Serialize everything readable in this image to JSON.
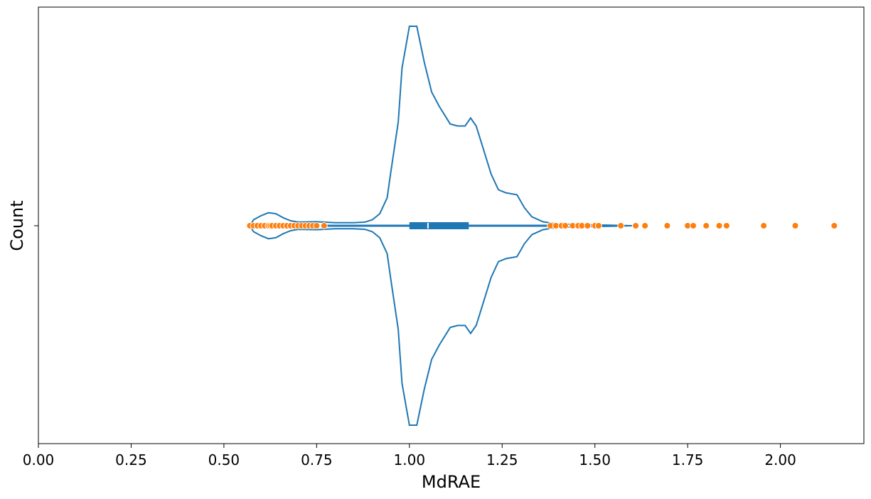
{
  "chart_data": {
    "type": "violin",
    "xlabel": "MdRAE",
    "ylabel": "Count",
    "xlim": [
      0.0,
      2.225
    ],
    "x_ticks": [
      "0.00",
      "0.25",
      "0.50",
      "0.75",
      "1.00",
      "1.25",
      "1.50",
      "1.75",
      "2.00"
    ],
    "y_ticks": [
      ""
    ],
    "grid": false,
    "colors": {
      "violin": "#1f77b4",
      "outliers": "#ff7f0e",
      "median": "#ffffff"
    },
    "box": {
      "q1": 1.0,
      "median": 1.05,
      "q3": 1.16,
      "whisker_low": 0.77,
      "whisker_high": 1.38
    },
    "density_profile": [
      [
        0.57,
        0.0
      ],
      [
        0.58,
        0.03
      ],
      [
        0.6,
        0.05
      ],
      [
        0.62,
        0.065
      ],
      [
        0.64,
        0.06
      ],
      [
        0.66,
        0.04
      ],
      [
        0.68,
        0.025
      ],
      [
        0.7,
        0.018
      ],
      [
        0.75,
        0.02
      ],
      [
        0.8,
        0.015
      ],
      [
        0.85,
        0.015
      ],
      [
        0.88,
        0.018
      ],
      [
        0.9,
        0.03
      ],
      [
        0.92,
        0.06
      ],
      [
        0.94,
        0.14
      ],
      [
        0.95,
        0.27
      ],
      [
        0.97,
        0.52
      ],
      [
        0.98,
        0.79
      ],
      [
        1.0,
        1.0
      ],
      [
        1.02,
        1.0
      ],
      [
        1.04,
        0.82
      ],
      [
        1.06,
        0.67
      ],
      [
        1.08,
        0.6
      ],
      [
        1.11,
        0.51
      ],
      [
        1.13,
        0.5
      ],
      [
        1.15,
        0.5
      ],
      [
        1.165,
        0.54
      ],
      [
        1.18,
        0.5
      ],
      [
        1.2,
        0.38
      ],
      [
        1.22,
        0.26
      ],
      [
        1.24,
        0.18
      ],
      [
        1.26,
        0.165
      ],
      [
        1.29,
        0.155
      ],
      [
        1.31,
        0.09
      ],
      [
        1.33,
        0.045
      ],
      [
        1.36,
        0.02
      ],
      [
        1.4,
        0.008
      ],
      [
        1.5,
        0.004
      ],
      [
        1.55,
        0.002
      ],
      [
        1.6,
        0.0
      ]
    ],
    "outliers": [
      0.57,
      0.58,
      0.59,
      0.6,
      0.61,
      0.62,
      0.625,
      0.63,
      0.64,
      0.65,
      0.66,
      0.67,
      0.68,
      0.69,
      0.7,
      0.71,
      0.72,
      0.73,
      0.74,
      0.75,
      0.77,
      1.38,
      1.395,
      1.41,
      1.42,
      1.44,
      1.455,
      1.465,
      1.48,
      1.5,
      1.51,
      1.57,
      1.61,
      1.635,
      1.695,
      1.75,
      1.765,
      1.8,
      1.835,
      1.855,
      1.955,
      2.04,
      2.145
    ]
  }
}
